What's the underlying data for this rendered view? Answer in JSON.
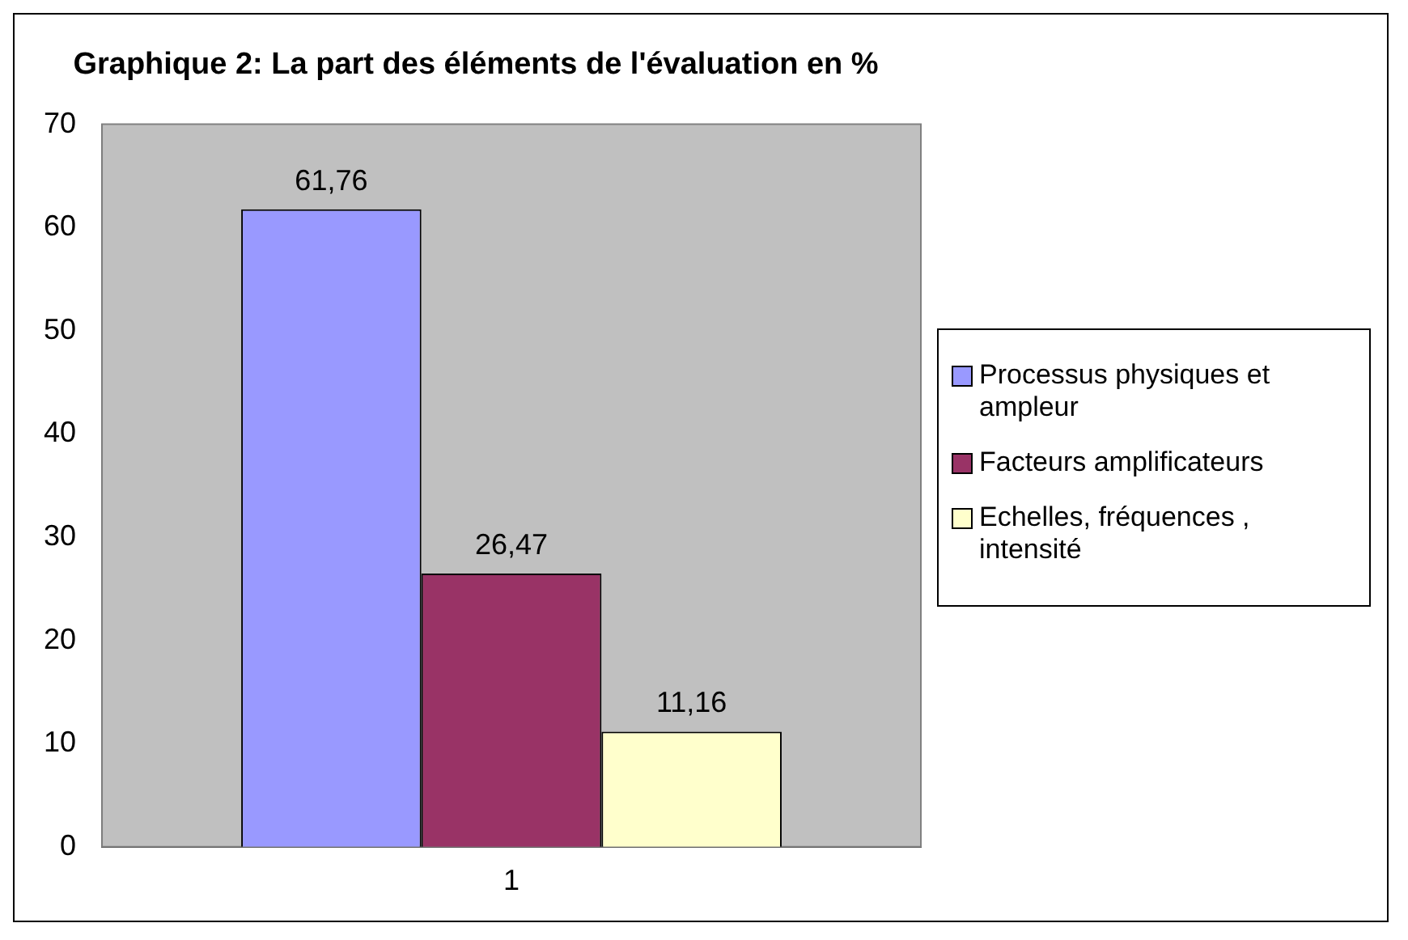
{
  "chart_data": {
    "type": "bar",
    "title": "Graphique 2: La part des éléments de l'évaluation en %",
    "categories": [
      "1"
    ],
    "series": [
      {
        "name": "Processus physiques et ampleur",
        "color": "#9999ff",
        "values": [
          61.76
        ],
        "value_labels": [
          "61,76"
        ]
      },
      {
        "name": "Facteurs amplificateurs",
        "color": "#993366",
        "values": [
          26.47
        ],
        "value_labels": [
          "26,47"
        ]
      },
      {
        "name": "Echelles, fréquences , intensité",
        "color": "#ffffcc",
        "values": [
          11.16
        ],
        "value_labels": [
          "11,16"
        ]
      }
    ],
    "ylim": [
      0,
      70
    ],
    "yticks": [
      0,
      10,
      20,
      30,
      40,
      50,
      60,
      70
    ],
    "grid": false,
    "legend": "right"
  }
}
